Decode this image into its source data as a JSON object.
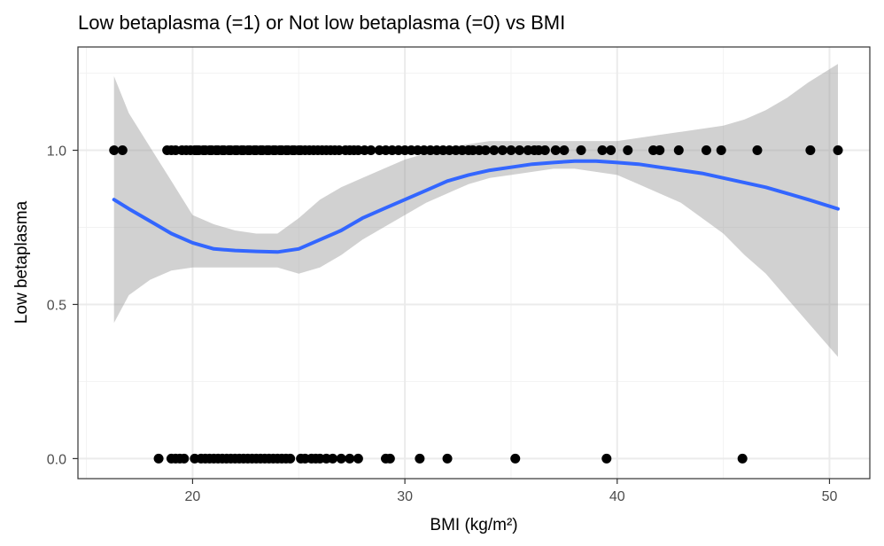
{
  "chart_data": {
    "type": "scatter",
    "title": "Low betaplasma (=1) or Not low betaplasma (=0) vs BMI",
    "xlabel": "BMI (kg/m²)",
    "ylabel": "Low betaplasma",
    "xlim": [
      14.6,
      51.9
    ],
    "ylim": [
      -0.065,
      1.335
    ],
    "x_ticks": [
      20,
      30,
      40,
      50
    ],
    "y_ticks": [
      0.0,
      0.5,
      1.0
    ],
    "x_tick_labels": [
      "20",
      "30",
      "40",
      "50"
    ],
    "y_tick_labels": [
      "0.0",
      "0.5",
      "1.0"
    ],
    "grid": true,
    "colors": {
      "points": "#000000",
      "smooth_line": "#3366FF",
      "ribbon": "#999999",
      "panel_border": "#333333",
      "grid_major": "#ebebeb",
      "grid_minor": "#f2f2f2"
    },
    "points": {
      "y1_x": [
        16.3,
        16.7,
        18.8,
        19.0,
        19.2,
        19.5,
        19.7,
        19.9,
        20.1,
        20.2,
        20.3,
        20.5,
        20.6,
        20.8,
        20.9,
        21.1,
        21.2,
        21.4,
        21.5,
        21.7,
        21.8,
        22.0,
        22.1,
        22.3,
        22.4,
        22.6,
        22.7,
        22.9,
        23.0,
        23.2,
        23.3,
        23.5,
        23.6,
        23.8,
        23.9,
        24.1,
        24.2,
        24.4,
        24.5,
        24.7,
        24.8,
        25.0,
        25.1,
        25.3,
        25.5,
        25.7,
        25.9,
        26.1,
        26.3,
        26.5,
        26.7,
        26.9,
        27.2,
        27.4,
        27.6,
        27.8,
        28.1,
        28.4,
        28.8,
        29.1,
        29.4,
        29.7,
        30.0,
        30.3,
        30.6,
        30.9,
        31.2,
        31.5,
        31.8,
        32.1,
        32.4,
        32.7,
        33.0,
        33.2,
        33.5,
        33.8,
        34.2,
        34.6,
        35.0,
        35.4,
        35.8,
        36.1,
        36.3,
        36.6,
        37.1,
        37.5,
        38.3,
        39.3,
        39.7,
        40.5,
        41.7,
        42.0,
        42.9,
        44.2,
        44.9,
        46.6,
        49.1,
        50.4
      ],
      "y0_x": [
        18.4,
        19.0,
        19.2,
        19.4,
        19.6,
        20.1,
        20.4,
        20.6,
        20.8,
        21.0,
        21.2,
        21.4,
        21.6,
        21.8,
        22.0,
        22.2,
        22.4,
        22.6,
        22.8,
        23.0,
        23.2,
        23.4,
        23.6,
        23.8,
        24.0,
        24.2,
        24.4,
        24.6,
        25.1,
        25.3,
        25.6,
        25.8,
        26.0,
        26.3,
        26.6,
        27.0,
        27.4,
        27.8,
        29.1,
        29.3,
        30.7,
        32.0,
        35.2,
        39.5,
        45.9
      ]
    },
    "smooth": {
      "x": [
        16.3,
        17.0,
        18.0,
        19.0,
        20.0,
        21.0,
        22.0,
        23.0,
        24.0,
        25.0,
        26.0,
        27.0,
        28.0,
        29.0,
        30.0,
        31.0,
        32.0,
        33.0,
        34.0,
        35.0,
        36.0,
        37.0,
        38.0,
        39.0,
        40.0,
        41.0,
        42.0,
        43.0,
        44.0,
        45.0,
        46.0,
        47.0,
        48.0,
        49.0,
        50.4
      ],
      "y": [
        0.84,
        0.81,
        0.77,
        0.73,
        0.7,
        0.68,
        0.675,
        0.672,
        0.67,
        0.68,
        0.71,
        0.74,
        0.78,
        0.81,
        0.84,
        0.87,
        0.9,
        0.92,
        0.935,
        0.945,
        0.955,
        0.96,
        0.965,
        0.965,
        0.96,
        0.955,
        0.945,
        0.935,
        0.925,
        0.91,
        0.895,
        0.88,
        0.86,
        0.84,
        0.81
      ],
      "lower": [
        0.44,
        0.53,
        0.58,
        0.61,
        0.62,
        0.62,
        0.62,
        0.62,
        0.62,
        0.6,
        0.62,
        0.66,
        0.71,
        0.75,
        0.79,
        0.83,
        0.86,
        0.89,
        0.91,
        0.92,
        0.93,
        0.94,
        0.94,
        0.93,
        0.92,
        0.89,
        0.86,
        0.83,
        0.78,
        0.73,
        0.66,
        0.6,
        0.52,
        0.44,
        0.33
      ],
      "upper": [
        1.24,
        1.12,
        1.01,
        0.9,
        0.79,
        0.76,
        0.74,
        0.73,
        0.73,
        0.78,
        0.84,
        0.88,
        0.91,
        0.94,
        0.97,
        0.99,
        1.01,
        1.02,
        1.03,
        1.03,
        1.03,
        1.03,
        1.03,
        1.03,
        1.03,
        1.04,
        1.05,
        1.06,
        1.07,
        1.08,
        1.1,
        1.13,
        1.17,
        1.22,
        1.28
      ]
    }
  }
}
